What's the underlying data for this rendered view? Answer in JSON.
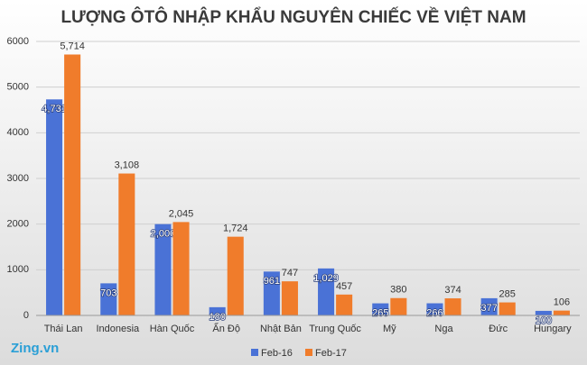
{
  "chart_data": {
    "type": "bar",
    "title": "LƯỢNG ÔTÔ NHẬP KHẨU NGUYÊN CHIẾC VỀ VIỆT NAM",
    "categories": [
      "Thái Lan",
      "Indonesia",
      "Hàn Quốc",
      "Ấn Độ",
      "Nhật Bản",
      "Trung Quốc",
      "Mỹ",
      "Nga",
      "Đức",
      "Hungary"
    ],
    "series": [
      {
        "name": "Feb-16",
        "color": "#4a72d6",
        "values": [
          4731,
          703,
          2000,
          180,
          961,
          1029,
          265,
          266,
          377,
          100
        ],
        "value_labels": [
          "4,731",
          "703",
          "2,000",
          "180",
          "961",
          "1,029",
          "265",
          "266",
          "377",
          "100"
        ]
      },
      {
        "name": "Feb-17",
        "color": "#f07c2b",
        "values": [
          5714,
          3108,
          2045,
          1724,
          747,
          457,
          380,
          374,
          285,
          106
        ],
        "value_labels": [
          "5,714",
          "3,108",
          "2,045",
          "1,724",
          "747",
          "457",
          "380",
          "374",
          "285",
          "106"
        ]
      }
    ],
    "ylim": [
      0,
      6000
    ],
    "yticks": [
      0,
      1000,
      2000,
      3000,
      4000,
      5000,
      6000
    ],
    "grid": true,
    "legend": "bottom",
    "watermark": "Zing.vn"
  }
}
